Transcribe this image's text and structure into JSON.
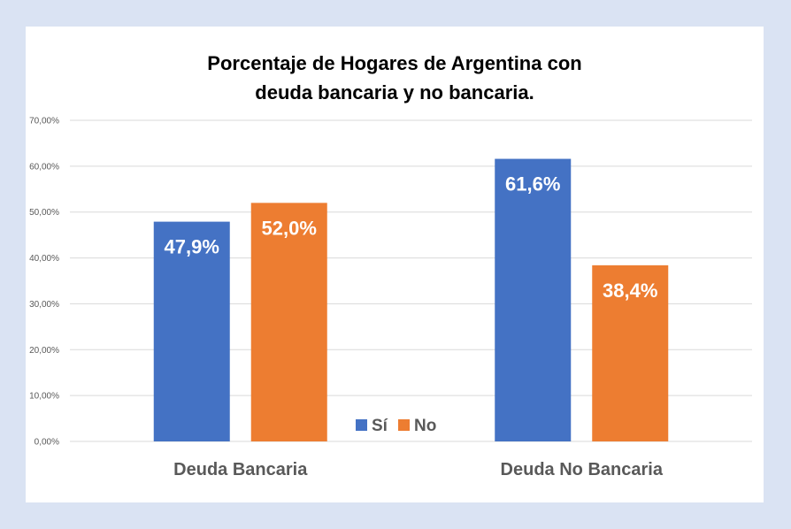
{
  "chart_data": {
    "type": "bar",
    "title_lines": [
      "Porcentaje de Hogares de Argentina con",
      "deuda bancaria y no bancaria."
    ],
    "categories": [
      "Deuda Bancaria",
      "Deuda No Bancaria"
    ],
    "series": [
      {
        "name": "Sí",
        "values": [
          47.9,
          61.6
        ],
        "labels": [
          "47,9%",
          "61,6%"
        ],
        "color": "#4472c4"
      },
      {
        "name": "No",
        "values": [
          52.0,
          38.4
        ],
        "labels": [
          "52,0%",
          "38,4%"
        ],
        "color": "#ed7d31"
      }
    ],
    "ylim": [
      0,
      70
    ],
    "yticks": [
      0,
      10,
      20,
      30,
      40,
      50,
      60,
      70
    ],
    "ytick_labels": [
      "0,00%",
      "10,00%",
      "20,00%",
      "30,00%",
      "40,00%",
      "50,00%",
      "60,00%",
      "70,00%"
    ],
    "grid": true,
    "legend_position": "bottom-center"
  }
}
